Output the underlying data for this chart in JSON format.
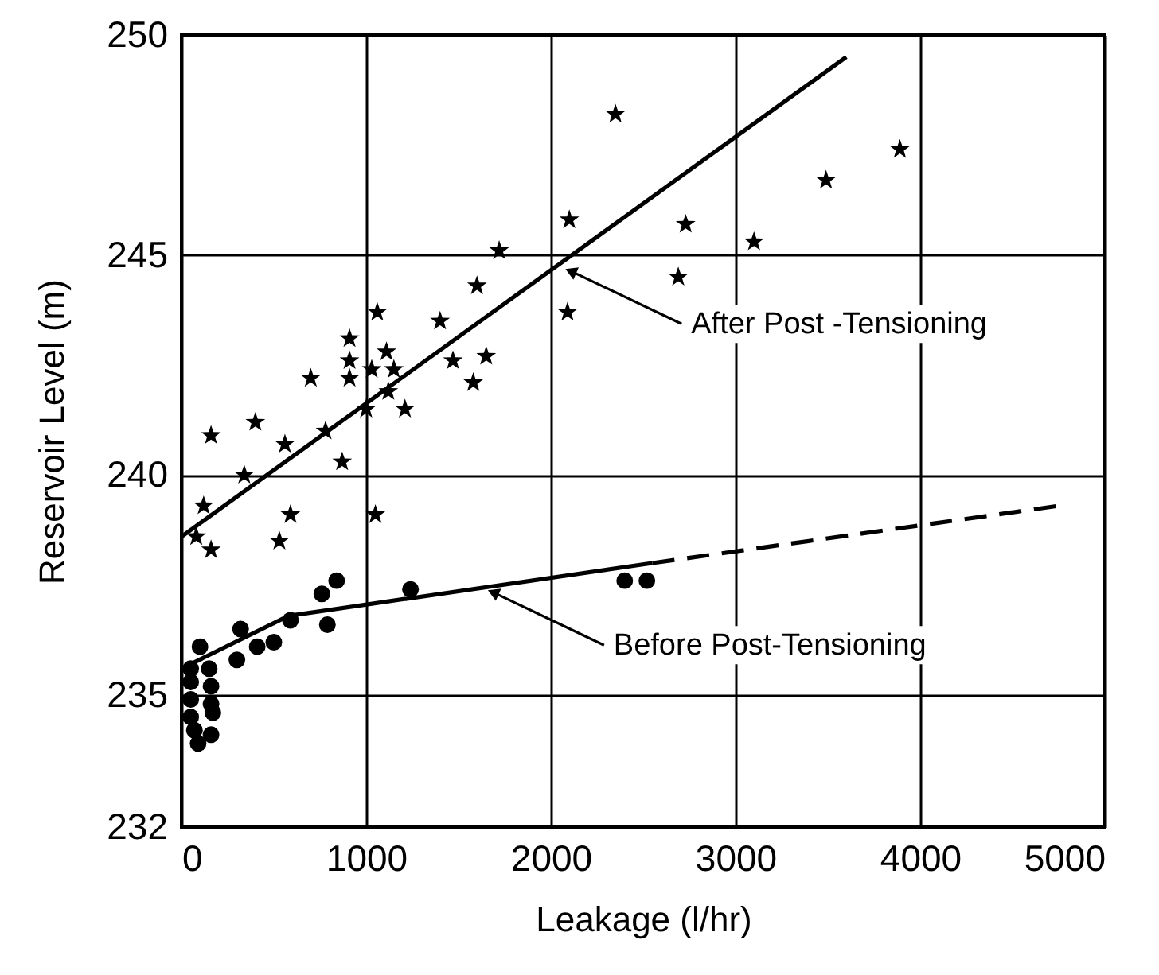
{
  "chart_data": {
    "type": "scatter",
    "xlabel": "Leakage (l/hr)",
    "ylabel": "Reservoir Level (m)",
    "xlim": [
      0,
      5000
    ],
    "xticks": [
      0,
      1000,
      2000,
      3000,
      4000,
      5000
    ],
    "ylim": [
      232,
      250
    ],
    "yticks": [
      232,
      235,
      240,
      245,
      250
    ],
    "grid": true,
    "series": [
      {
        "marker": "star",
        "color": "#000000",
        "x": [
          2100,
          1720,
          1600,
          2090,
          1400,
          1060,
          910,
          1110,
          910,
          1470,
          1650,
          1030,
          1580,
          910,
          700,
          1150,
          1120,
          1000,
          1210,
          780,
          400,
          160,
          560,
          340,
          870,
          120,
          590,
          1050,
          80,
          160,
          530,
          2350,
          3890,
          3490,
          2730,
          3100,
          2690
        ],
        "values": [
          245.8,
          245.1,
          244.3,
          243.7,
          243.5,
          243.7,
          243.1,
          242.8,
          242.6,
          242.6,
          242.7,
          242.4,
          242.1,
          242.2,
          242.2,
          242.4,
          241.9,
          241.5,
          241.5,
          241.0,
          241.2,
          240.9,
          240.7,
          240.0,
          240.3,
          239.3,
          239.1,
          239.1,
          238.6,
          238.3,
          238.5,
          248.2,
          247.4,
          246.7,
          245.7,
          245.3,
          244.5
        ]
      },
      {
        "marker": "circle",
        "color": "#000000",
        "x": [
          50,
          100,
          150,
          160,
          50,
          160,
          170,
          50,
          70,
          160,
          90,
          50,
          300,
          320,
          410,
          500,
          590,
          790,
          760,
          840,
          1240,
          2400,
          2520
        ],
        "values": [
          235.6,
          236.1,
          235.6,
          235.2,
          234.9,
          234.8,
          234.6,
          234.5,
          234.2,
          234.1,
          233.9,
          235.3,
          235.8,
          236.5,
          236.1,
          236.2,
          236.7,
          236.6,
          237.3,
          237.6,
          237.4,
          237.6,
          237.6
        ]
      },
      {
        "type": "line",
        "marker": "none",
        "line_style": "solid",
        "color": "#000000",
        "x": [
          0,
          3600
        ],
        "values": [
          238.6,
          249.5
        ]
      },
      {
        "type": "line",
        "marker": "none",
        "line_style": "solid",
        "color": "#000000",
        "x": [
          0,
          580,
          2550
        ],
        "values": [
          235.6,
          236.8,
          238.0
        ]
      },
      {
        "type": "line",
        "marker": "none",
        "line_style": "dashed",
        "color": "#000000",
        "x": [
          2550,
          4750
        ],
        "values": [
          238.0,
          239.3
        ]
      }
    ],
    "annotations": [
      {
        "text": "After Post -Tensioning",
        "x": 2070,
        "y": 244.7
      },
      {
        "text": "Before Post-Tensioning",
        "x": 1650,
        "y": 237.4
      }
    ]
  }
}
